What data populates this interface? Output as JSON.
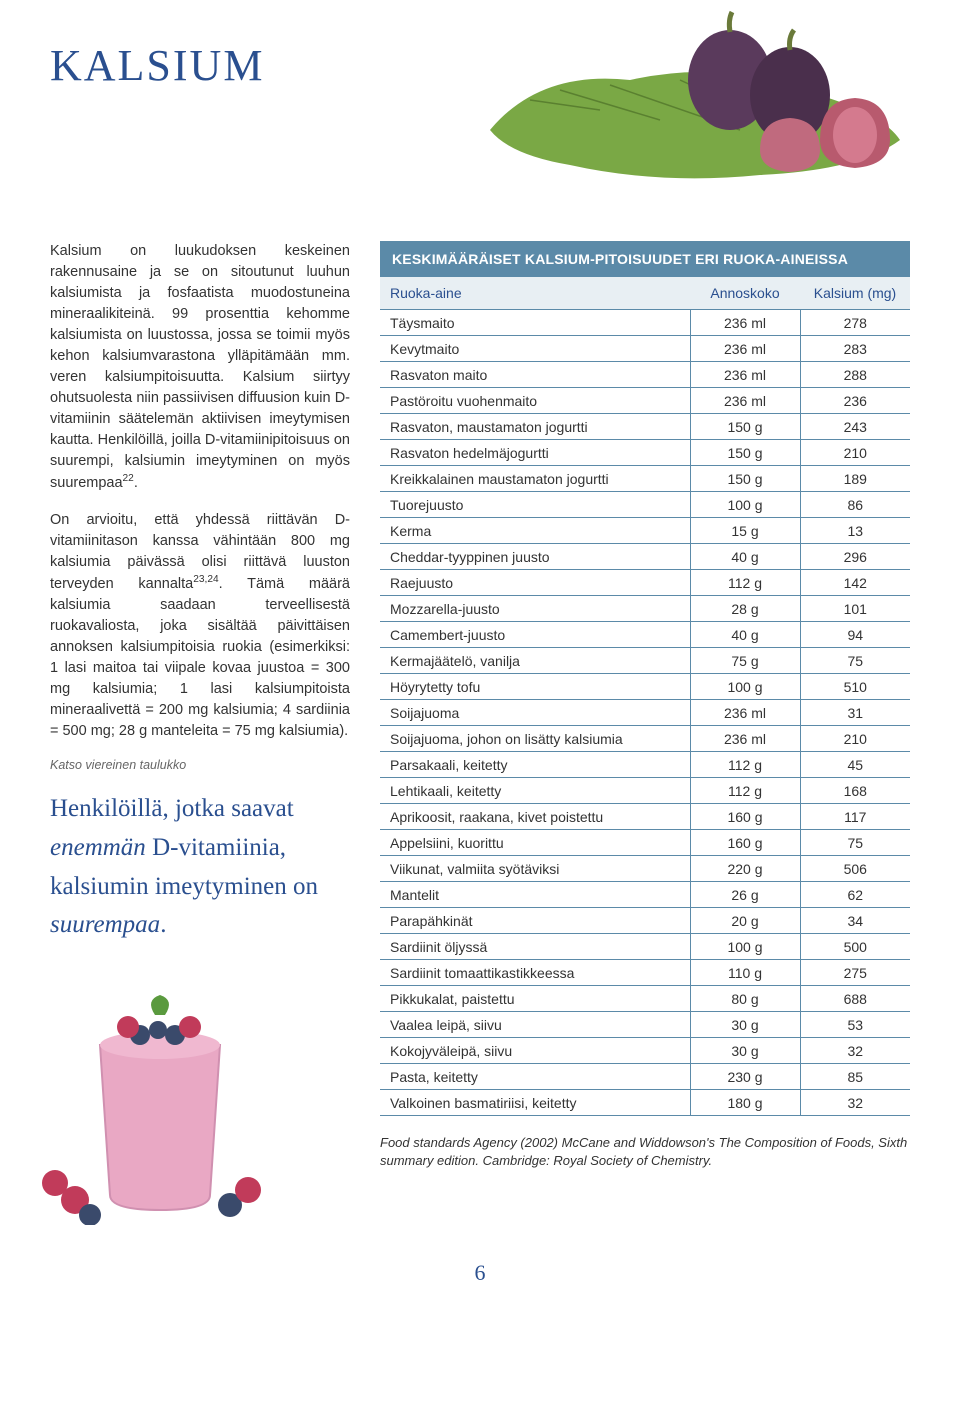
{
  "title": "KALSIUM",
  "hero": {
    "leaf_color": "#7aa845",
    "fig_color": "#5a3a5c",
    "fig_inner": "#b85a6e"
  },
  "paragraphs": {
    "p1": "Kalsium on luukudoksen keskeinen rakennusaine ja se on sitoutunut luuhun kalsiumista ja fosfaatista muodostuneina mineraalikiteinä. 99 prosenttia kehomme kalsiumista on luustossa, jossa se toimii myös kehon kalsiumvarastona ylläpitämään mm. veren kalsiumpitoisuutta. Kalsium siirtyy ohutsuolesta niin passiivisen diffuusion kuin D-vitamiinin säätelemän aktiivisen imeytymisen kautta. Henkilöillä, joilla D-vitamiinipitoisuus on suurempi, kalsiumin imeytyminen on myös suurempaa",
    "p1_sup": "22",
    "p1_end": ".",
    "p2a": "On arvioitu, että yhdessä riittävän D-vitamiinitason kanssa vähintään 800 mg kalsiumia päivässä olisi riittävä luuston terveyden kannalta",
    "p2_sup": "23,24",
    "p2b": ". Tämä määrä kalsiumia saadaan terveellisestä ruokavaliosta, joka sisältää päivittäisen annoksen kalsiumpitoisia ruokia (esimerkiksi: 1 lasi maitoa tai viipale kovaa juustoa = 300 mg kalsiumia; 1 lasi kalsiumpitoista mineraalivettä = 200 mg kalsiumia; 4 sardiinia = 500 mg; 28 g manteleita = 75 mg kalsiumia)."
  },
  "caption": "Katso viereinen taulukko",
  "pullquote": {
    "l1a": "Henkilöillä, jotka saavat ",
    "l1b": "enemmän",
    "l1c": " D-vitamiinia, kalsiumin imeytyminen on ",
    "l1d": "suurempaa",
    "l1e": "."
  },
  "smoothie": {
    "pink": "#e9a8c4",
    "raspberry": "#c13b5a",
    "blueberry": "#3a4a6b",
    "leaf": "#5a9a3e"
  },
  "table": {
    "header": "KESKIMÄÄRÄISET KALSIUM-PITOISUUDET ERI RUOKA-AINEISSA",
    "columns": [
      "Ruoka-aine",
      "Annoskoko",
      "Kalsium (mg)"
    ],
    "rows": [
      [
        "Täysmaito",
        "236 ml",
        "278"
      ],
      [
        "Kevytmaito",
        "236 ml",
        "283"
      ],
      [
        "Rasvaton maito",
        "236 ml",
        "288"
      ],
      [
        "Pastöroitu vuohenmaito",
        "236 ml",
        "236"
      ],
      [
        "Rasvaton, maustamaton jogurtti",
        "150 g",
        "243"
      ],
      [
        "Rasvaton hedelmäjogurtti",
        "150 g",
        "210"
      ],
      [
        "Kreikkalainen maustamaton jogurtti",
        "150 g",
        "189"
      ],
      [
        "Tuorejuusto",
        "100 g",
        "86"
      ],
      [
        "Kerma",
        "15 g",
        "13"
      ],
      [
        "Cheddar-tyyppinen juusto",
        "40 g",
        "296"
      ],
      [
        "Raejuusto",
        "112 g",
        "142"
      ],
      [
        "Mozzarella-juusto",
        "28 g",
        "101"
      ],
      [
        "Camembert-juusto",
        "40 g",
        "94"
      ],
      [
        "Kermajäätelö, vanilja",
        "75 g",
        "75"
      ],
      [
        "Höyrytetty tofu",
        "100 g",
        "510"
      ],
      [
        "Soijajuoma",
        "236 ml",
        "31"
      ],
      [
        "Soijajuoma, johon on lisätty kalsiumia",
        "236 ml",
        "210"
      ],
      [
        "Parsakaali, keitetty",
        "112 g",
        "45"
      ],
      [
        "Lehtikaali, keitetty",
        "112 g",
        "168"
      ],
      [
        "Aprikoosit, raakana, kivet poistettu",
        "160 g",
        "117"
      ],
      [
        "Appelsiini, kuorittu",
        "160 g",
        "75"
      ],
      [
        "Viikunat, valmiita syötäviksi",
        "220 g",
        "506"
      ],
      [
        "Mantelit",
        "26 g",
        "62"
      ],
      [
        "Parapähkinät",
        "20 g",
        "34"
      ],
      [
        "Sardiinit öljyssä",
        "100 g",
        "500"
      ],
      [
        "Sardiinit tomaattikastikkeessa",
        "110 g",
        "275"
      ],
      [
        "Pikkukalat, paistettu",
        "80 g",
        "688"
      ],
      [
        "Vaalea leipä, siivu",
        "30 g",
        "53"
      ],
      [
        "Kokojyväleipä, siivu",
        "30 g",
        "32"
      ],
      [
        "Pasta, keitetty",
        "230 g",
        "85"
      ],
      [
        "Valkoinen basmatiriisi, keitetty",
        "180 g",
        "32"
      ]
    ],
    "colors": {
      "header_bg": "#5b8aa8",
      "header_fg": "#ffffff",
      "thead_bg": "#e8eff3",
      "thead_fg": "#2a4f8f",
      "border": "#5b8aa8"
    }
  },
  "source": "Food standards Agency (2002) McCane and Widdowson's The Composition of Foods, Sixth summary edition. Cambridge: Royal Society of Chemistry.",
  "page_number": "6"
}
